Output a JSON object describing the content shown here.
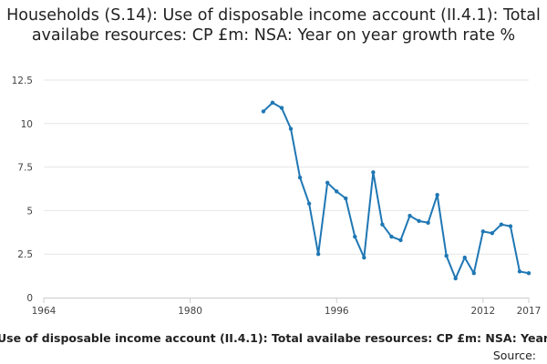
{
  "chart_data": {
    "type": "line",
    "title": "Households (S.14): Use of disposable income account (II.4.1): Total availabe resources: CP £m: NSA: Year on year growth rate %",
    "xlabel": "",
    "ylabel": "",
    "xlim": [
      1964,
      2017
    ],
    "ylim": [
      0,
      12.5
    ],
    "x_ticks": [
      "1964",
      "1980",
      "1996",
      "2012",
      "2017"
    ],
    "y_ticks": [
      "0",
      "2.5",
      "5",
      "7.5",
      "10",
      "12.5"
    ],
    "grid": "horizontal",
    "legend": "none",
    "series": [
      {
        "color": "#1f77b4",
        "x": [
          1988,
          1989,
          1990,
          1991,
          1992,
          1993,
          1994,
          1995,
          1996,
          1997,
          1998,
          1999,
          2000,
          2001,
          2002,
          2003,
          2004,
          2005,
          2006,
          2007,
          2008,
          2009,
          2010,
          2011,
          2012,
          2013,
          2014,
          2015,
          2016,
          2017
        ],
        "y": [
          10.7,
          11.2,
          10.9,
          9.7,
          6.9,
          5.4,
          2.5,
          6.6,
          6.1,
          5.7,
          3.5,
          2.3,
          7.2,
          4.2,
          3.5,
          3.3,
          4.7,
          4.4,
          4.3,
          5.9,
          2.4,
          1.1,
          2.3,
          1.4,
          3.8,
          3.7,
          4.2,
          4.1,
          1.5,
          1.4
        ]
      }
    ]
  },
  "caption": "Use of disposable income account (II.4.1): Total availabe resources: CP £m: NSA: Year",
  "source_label": "Source:"
}
